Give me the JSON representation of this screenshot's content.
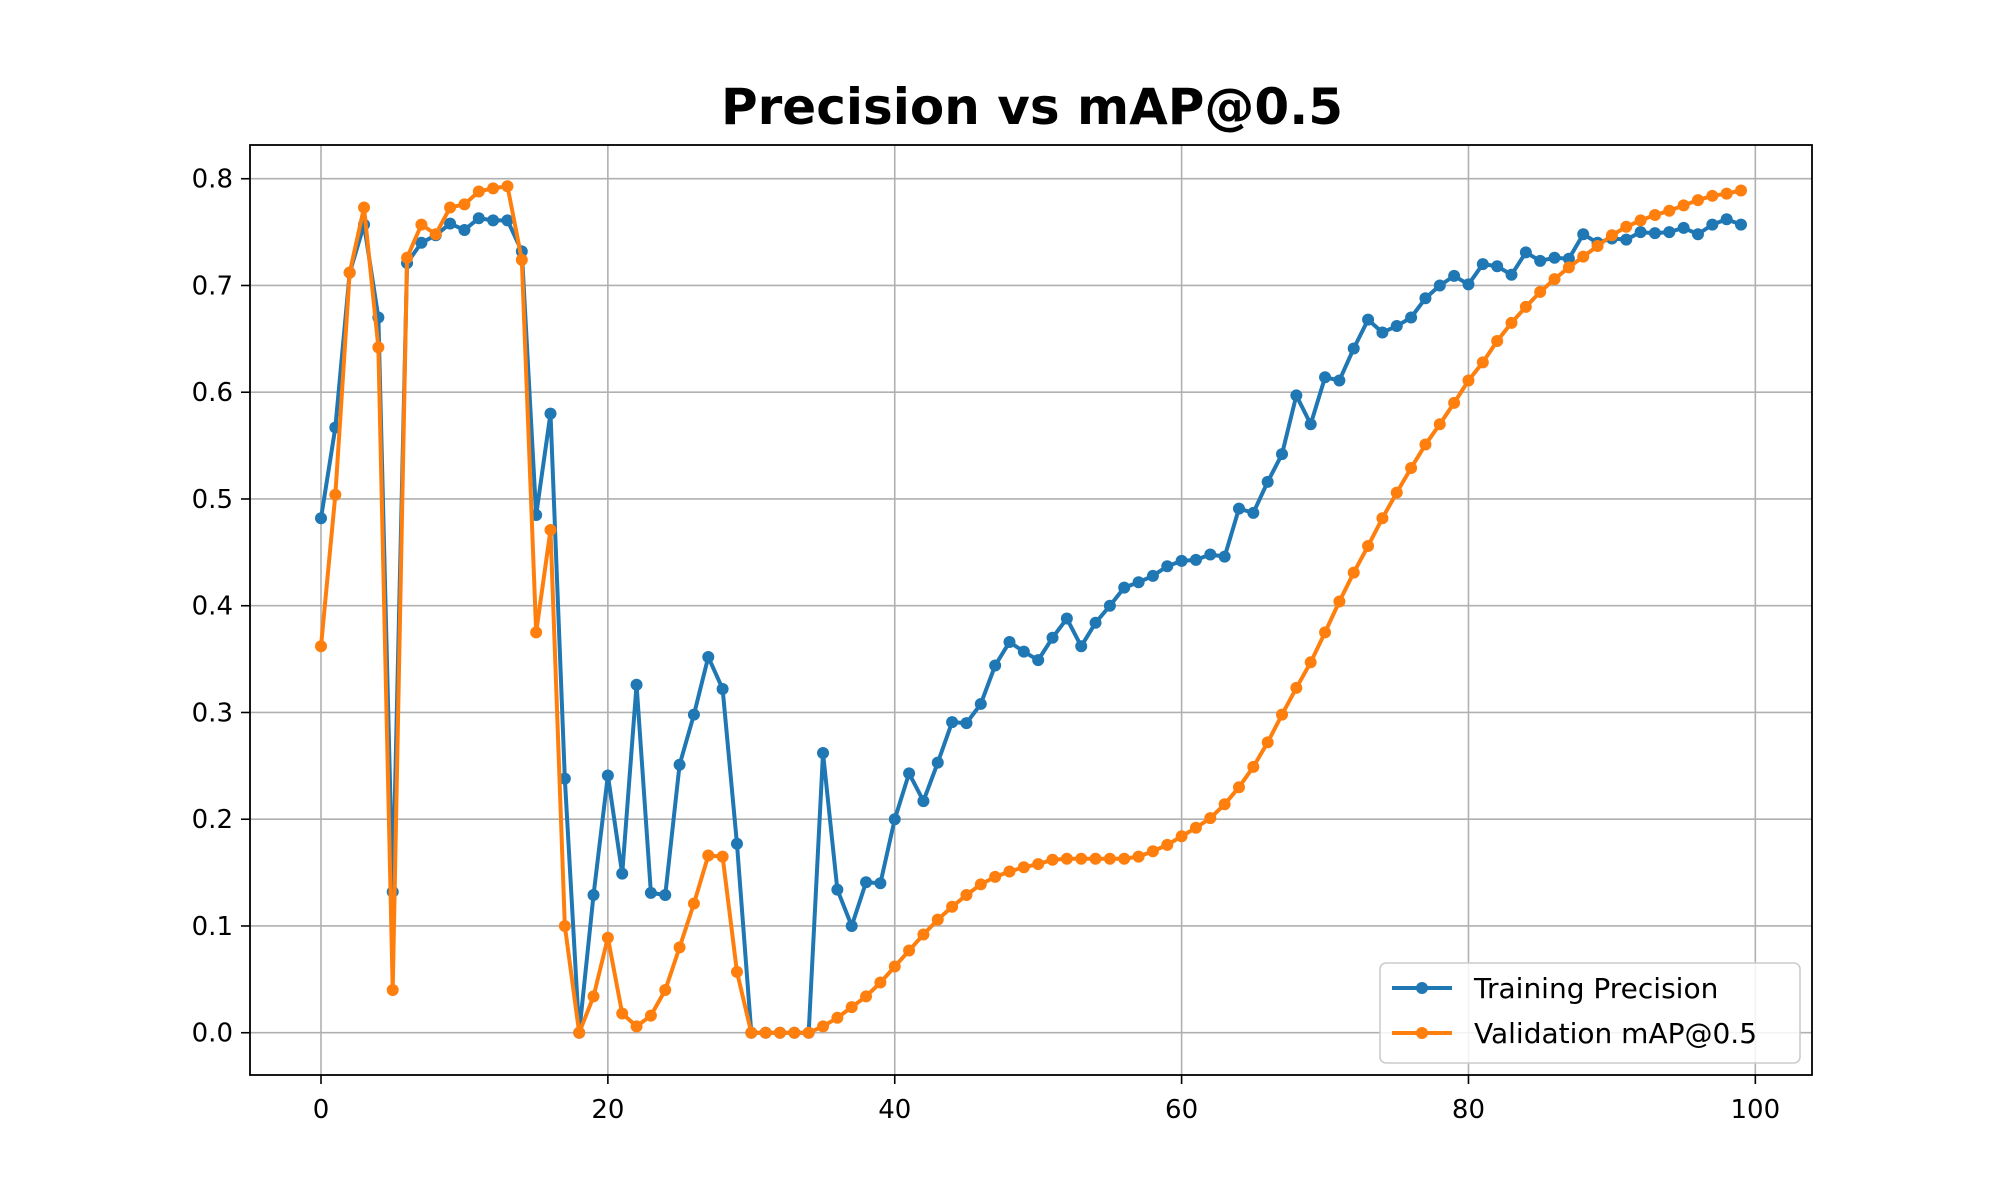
{
  "chart_data": {
    "type": "line",
    "title": "Precision vs mAP@0.5",
    "xlabel": "",
    "ylabel": "",
    "xlim": [
      -4.95,
      103.95
    ],
    "ylim": [
      -0.0396,
      0.8316
    ],
    "xticks": [
      0,
      20,
      40,
      60,
      80,
      100
    ],
    "xtick_labels": [
      "0",
      "20",
      "40",
      "60",
      "80",
      "100"
    ],
    "yticks": [
      0.0,
      0.1,
      0.2,
      0.3,
      0.4,
      0.5,
      0.6,
      0.7,
      0.8
    ],
    "ytick_labels": [
      "0.0",
      "0.1",
      "0.2",
      "0.3",
      "0.4",
      "0.5",
      "0.6",
      "0.7",
      "0.8"
    ],
    "grid": true,
    "legend_position": "lower-right",
    "x": [
      0,
      1,
      2,
      3,
      4,
      5,
      6,
      7,
      8,
      9,
      10,
      11,
      12,
      13,
      14,
      15,
      16,
      17,
      18,
      19,
      20,
      21,
      22,
      23,
      24,
      25,
      26,
      27,
      28,
      29,
      30,
      31,
      32,
      33,
      34,
      35,
      36,
      37,
      38,
      39,
      40,
      41,
      42,
      43,
      44,
      45,
      46,
      47,
      48,
      49,
      50,
      51,
      52,
      53,
      54,
      55,
      56,
      57,
      58,
      59,
      60,
      61,
      62,
      63,
      64,
      65,
      66,
      67,
      68,
      69,
      70,
      71,
      72,
      73,
      74,
      75,
      76,
      77,
      78,
      79,
      80,
      81,
      82,
      83,
      84,
      85,
      86,
      87,
      88,
      89,
      90,
      91,
      92,
      93,
      94,
      95,
      96,
      97,
      98,
      99
    ],
    "series": [
      {
        "name": "Training Precision",
        "color": "#1f77b4",
        "values": [
          0.482,
          0.567,
          0.712,
          0.757,
          0.67,
          0.132,
          0.721,
          0.74,
          0.747,
          0.758,
          0.752,
          0.763,
          0.761,
          0.761,
          0.732,
          0.485,
          0.58,
          0.238,
          0.0,
          0.129,
          0.241,
          0.149,
          0.326,
          0.131,
          0.129,
          0.251,
          0.298,
          0.352,
          0.322,
          0.177,
          0.0,
          0.0,
          0.0,
          0.0,
          0.0,
          0.262,
          0.134,
          0.1,
          0.141,
          0.14,
          0.2,
          0.243,
          0.217,
          0.253,
          0.291,
          0.29,
          0.308,
          0.344,
          0.366,
          0.357,
          0.349,
          0.37,
          0.388,
          0.362,
          0.384,
          0.4,
          0.417,
          0.422,
          0.428,
          0.437,
          0.442,
          0.443,
          0.448,
          0.446,
          0.491,
          0.487,
          0.516,
          0.542,
          0.597,
          0.57,
          0.614,
          0.611,
          0.641,
          0.668,
          0.656,
          0.662,
          0.67,
          0.688,
          0.7,
          0.709,
          0.701,
          0.72,
          0.718,
          0.71,
          0.731,
          0.723,
          0.726,
          0.725,
          0.748,
          0.74,
          0.744,
          0.743,
          0.75,
          0.749,
          0.75,
          0.754,
          0.748,
          0.757,
          0.762,
          0.757
        ]
      },
      {
        "name": "Validation mAP@0.5",
        "color": "#ff7f0e",
        "values": [
          0.362,
          0.504,
          0.712,
          0.773,
          0.642,
          0.04,
          0.726,
          0.757,
          0.748,
          0.773,
          0.776,
          0.788,
          0.791,
          0.793,
          0.724,
          0.375,
          0.471,
          0.1,
          0.0,
          0.034,
          0.089,
          0.018,
          0.006,
          0.016,
          0.04,
          0.08,
          0.121,
          0.166,
          0.165,
          0.057,
          0.0,
          0.0,
          0.0,
          0.0,
          0.0,
          0.006,
          0.014,
          0.024,
          0.034,
          0.047,
          0.062,
          0.077,
          0.092,
          0.106,
          0.118,
          0.129,
          0.139,
          0.146,
          0.151,
          0.155,
          0.158,
          0.162,
          0.163,
          0.163,
          0.163,
          0.163,
          0.163,
          0.165,
          0.17,
          0.176,
          0.184,
          0.192,
          0.201,
          0.214,
          0.23,
          0.249,
          0.272,
          0.298,
          0.323,
          0.347,
          0.375,
          0.404,
          0.431,
          0.456,
          0.482,
          0.506,
          0.529,
          0.551,
          0.57,
          0.59,
          0.611,
          0.628,
          0.648,
          0.665,
          0.68,
          0.694,
          0.706,
          0.717,
          0.727,
          0.737,
          0.747,
          0.755,
          0.761,
          0.766,
          0.77,
          0.775,
          0.78,
          0.784,
          0.786,
          0.789
        ]
      }
    ]
  }
}
